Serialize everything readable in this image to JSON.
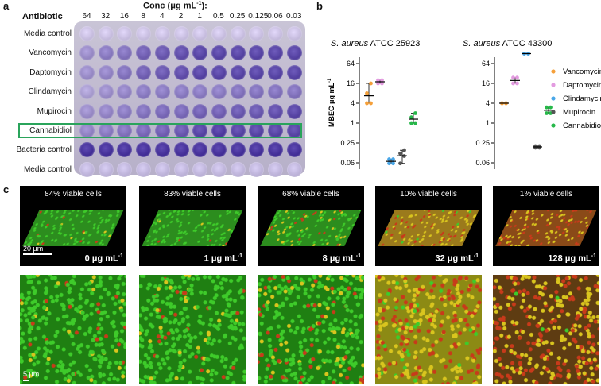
{
  "panel_a": {
    "letter": "a",
    "conc_title": "Conc (μg mL",
    "conc_title_sup": "-1",
    "conc_title_end": "):",
    "antibiotic_header": "Antibiotic",
    "concentrations": [
      "64",
      "32",
      "16",
      "8",
      "4",
      "2",
      "1",
      "0.5",
      "0.25",
      "0.125",
      "0.06",
      "0.03"
    ],
    "rows": [
      "Media control",
      "Vancomycin",
      "Daptomycin",
      "Clindamycin",
      "Mupirocin",
      "Cannabidiol",
      "Bacteria control",
      "Media control"
    ],
    "highlight_color": "#2aa45b"
  },
  "panel_b": {
    "letter": "b",
    "ylabel": "MBEC μg mL",
    "ylabel_sup": "-1",
    "legend": [
      {
        "label": "Vancomycin",
        "color": "#f5a03a"
      },
      {
        "label": "Daptomycin",
        "color": "#e39be0"
      },
      {
        "label": "Clindamycin",
        "color": "#4aa7e8"
      },
      {
        "label": "Mupirocin",
        "color": "#555555"
      },
      {
        "label": "Cannabidiol",
        "color": "#27b84a"
      }
    ],
    "chart_data": [
      {
        "type": "scatter",
        "title_species": "S. aureus",
        "title_strain": " ATCC 25923",
        "ylabel": "MBEC μg mL-1",
        "yscale": "log2",
        "yticks": [
          "64",
          "16",
          "4",
          "1",
          "0.25",
          "0.06"
        ],
        "ylim": [
          0.03,
          128
        ],
        "series": [
          {
            "name": "Vancomycin",
            "values": [
              8,
              4,
              4,
              16
            ]
          },
          {
            "name": "Daptomycin",
            "values": [
              16,
              16,
              20,
              20
            ]
          },
          {
            "name": "Clindamycin",
            "values": [
              0.06,
              0.06,
              0.08,
              0.08
            ]
          },
          {
            "name": "Mupirocin",
            "values": [
              0.06,
              0.1,
              0.12,
              0.15
            ]
          },
          {
            "name": "Cannabidiol",
            "values": [
              1,
              2,
              1.5,
              1
            ]
          }
        ]
      },
      {
        "type": "scatter",
        "title_species": "S. aureus",
        "title_strain": " ATCC 43300",
        "ylabel": "MBEC μg mL-1",
        "yscale": "log2",
        "yticks": [
          "64",
          "16",
          "4",
          "1",
          "0.25",
          "0.06"
        ],
        "ylim": [
          0.03,
          128
        ],
        "series": [
          {
            "name": "Vancomycin",
            "values": [
              4,
              4,
              4,
              4
            ]
          },
          {
            "name": "Daptomycin",
            "values": [
              16,
              16,
              24,
              24
            ]
          },
          {
            "name": "Clindamycin",
            "values": [
              128,
              128,
              128,
              128
            ]
          },
          {
            "name": "Mupirocin",
            "values": [
              0.2,
              0.2,
              0.18,
              0.18
            ]
          },
          {
            "name": "Cannabidiol",
            "values": [
              2,
              2,
              3,
              3
            ]
          }
        ]
      }
    ]
  },
  "panel_c": {
    "letter": "c",
    "scale_top": "20 μm",
    "scale_bottom": "5 μm",
    "conc_unit": " μg mL",
    "conc_unit_sup": "-1",
    "images": [
      {
        "viable": "84% viable cells",
        "conc": "0",
        "green": 0.84
      },
      {
        "viable": "83% viable cells",
        "conc": "1",
        "green": 0.83
      },
      {
        "viable": "68% viable cells",
        "conc": "8",
        "green": 0.68
      },
      {
        "viable": "10% viable cells",
        "conc": "32",
        "green": 0.1
      },
      {
        "viable": "1% viable cells",
        "conc": "128",
        "green": 0.01
      }
    ]
  }
}
